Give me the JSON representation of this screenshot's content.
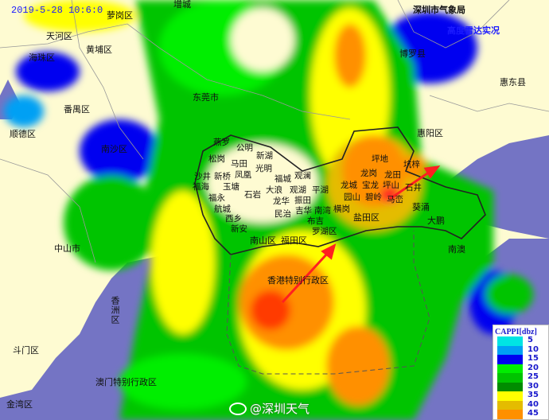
{
  "header": {
    "timestamp": "2019-5-28 10:6:0",
    "organization": "深圳市气象局",
    "product": "高度雷达实况"
  },
  "colors": {
    "sea": "#7474c4",
    "land": "#fefbd2",
    "arrow": "#ff2020"
  },
  "labels": {
    "luogang": "萝岗区",
    "zengcheng": "增城",
    "tianhe": "天河区",
    "haizhu": "海珠区",
    "huangpu": "黄埔区",
    "panyu": "番禺区",
    "dongguan": "东莞市",
    "shunde": "顺德区",
    "nansha": "南沙区",
    "zhongshan": "中山市",
    "xiangzhou": "香洲区",
    "doumen": "斗门区",
    "jinwan": "金湾区",
    "macau": "澳门特别行政区",
    "hongkong": "香港特别行政区",
    "huiyang": "惠阳区",
    "huidong": "惠东县",
    "boluo": "博罗县",
    "nanao": "南澳",
    "dapeng": "大鹏",
    "kuichong": "葵涌",
    "pingdi": "坪地",
    "kengzi": "坑梓",
    "longgang": "龙岗",
    "longtian": "龙田",
    "longcheng": "龙城",
    "baolong": "宝龙",
    "pingshan": "坪山",
    "shijing": "石井",
    "yuanshan": "园山",
    "biling": "碧岭",
    "maluan": "马峦",
    "yantian": "盐田区",
    "yanluo": "燕罗",
    "gongming": "公明",
    "songgang": "松岗",
    "matian": "马田",
    "xinhu": "新湖",
    "fenghuang": "凤凰",
    "guangming": "光明",
    "shajing": "沙井",
    "xinqiao": "新桥",
    "fucheng": "福城",
    "guanlan": "观澜",
    "fuhai": "福海",
    "yutang": "玉塘",
    "shiyan": "石岩",
    "dalang": "大浪",
    "guanhu": "观湖",
    "pinghu": "平湖",
    "fuyong": "福永",
    "longhua": "龙华",
    "zhentian": "振田",
    "hangcheng": "航城",
    "minzhi": "民治",
    "jihua": "吉华",
    "nanwan": "南湾",
    "henggang": "横岗",
    "xixiang": "西乡",
    "buji": "布吉",
    "xinan": "新安",
    "luohu": "罗湖区",
    "nanshan": "南山区",
    "futian": "福田区"
  },
  "legend": {
    "title": "CAPPI[dbz]",
    "items": [
      {
        "value": "5",
        "color": "#00e4e4"
      },
      {
        "value": "10",
        "color": "#00a0f4"
      },
      {
        "value": "15",
        "color": "#0000f0"
      },
      {
        "value": "20",
        "color": "#00ee00"
      },
      {
        "value": "25",
        "color": "#00c400"
      },
      {
        "value": "30",
        "color": "#008c00"
      },
      {
        "value": "35",
        "color": "#ffff00"
      },
      {
        "value": "40",
        "color": "#e4bc00"
      },
      {
        "value": "45",
        "color": "#ff9000"
      }
    ]
  },
  "watermark": "@深圳天气"
}
